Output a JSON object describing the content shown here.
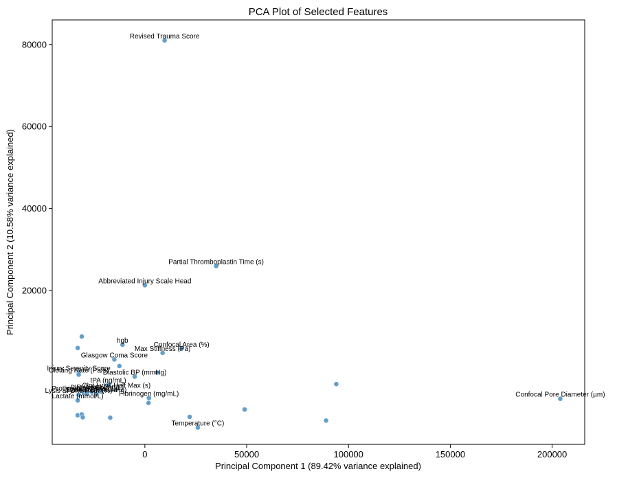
{
  "chart_data": {
    "type": "scatter",
    "title": "PCA Plot of Selected Features",
    "xlabel": "Principal Component 1 (89.42% variance explained)",
    "ylabel": "Principal Component 2 (10.58% variance explained)",
    "xlim": [
      -45500,
      216000
    ],
    "ylim": [
      -17500,
      86000
    ],
    "xticks": [
      0,
      50000,
      100000,
      150000,
      200000
    ],
    "yticks": [
      20000,
      40000,
      60000,
      80000
    ],
    "tick_labels_x": [
      "0",
      "50000",
      "100000",
      "150000",
      "200000"
    ],
    "tick_labels_y": [
      "20000",
      "40000",
      "60000",
      "80000"
    ],
    "points": [
      {
        "x": 9700,
        "y": 81000,
        "label": "Revised Trauma Score"
      },
      {
        "x": 35000,
        "y": 26000,
        "label": "Partial Thromboplastin Time (s)"
      },
      {
        "x": 0,
        "y": 21300,
        "label": "Abbreviated Injury Scale Head"
      },
      {
        "x": -31000,
        "y": 8800,
        "label": ""
      },
      {
        "x": -33000,
        "y": 6000,
        "label": ""
      },
      {
        "x": -11000,
        "y": 6800,
        "label": "hgb"
      },
      {
        "x": 18000,
        "y": 5800,
        "label": "Confocal Area (%)"
      },
      {
        "x": 8700,
        "y": 4800,
        "label": "Max Stiffness (Pa)"
      },
      {
        "x": -15000,
        "y": 3200,
        "label": "Glasgow Coma Score"
      },
      {
        "x": -12500,
        "y": 1600,
        "label": ""
      },
      {
        "x": -32500,
        "y": 0,
        "label": "Injury Severity Score"
      },
      {
        "x": -32500,
        "y": -500,
        "label": "Clotting Rate (Pa/s)"
      },
      {
        "x": 6000,
        "y": 0,
        "label": ""
      },
      {
        "x": -5000,
        "y": -1000,
        "label": "Diastolic BP (mmHg)"
      },
      {
        "x": 94000,
        "y": -2800,
        "label": ""
      },
      {
        "x": -18000,
        "y": -2900,
        "label": "tPA (ng/mL)"
      },
      {
        "x": -14000,
        "y": -4200,
        "label": "Clot Lysis Half Max (s)"
      },
      {
        "x": -22000,
        "y": -4600,
        "label": "D-Dimer (mg/L)"
      },
      {
        "x": -26000,
        "y": -4700,
        "label": "Platelet Count"
      },
      {
        "x": -30000,
        "y": -4900,
        "label": "Prothrombin Time (s)"
      },
      {
        "x": -28500,
        "y": -5200,
        "label": "Base Excess"
      },
      {
        "x": -24000,
        "y": -5300,
        "label": "Systolic BP (mmHg)"
      },
      {
        "x": -32500,
        "y": -5400,
        "label": "Lysis at One Hour (%)"
      },
      {
        "x": -33000,
        "y": -6800,
        "label": "Lactate (mmol/L)"
      },
      {
        "x": 204000,
        "y": -6400,
        "label": "Confocal Pore Diameter (µm)"
      },
      {
        "x": 2000,
        "y": -6200,
        "label": "Fibrinogen (mg/mL)"
      },
      {
        "x": 1800,
        "y": -7400,
        "label": ""
      },
      {
        "x": 49000,
        "y": -9000,
        "label": ""
      },
      {
        "x": -33000,
        "y": -10400,
        "label": ""
      },
      {
        "x": -31000,
        "y": -10200,
        "label": ""
      },
      {
        "x": -30500,
        "y": -10900,
        "label": ""
      },
      {
        "x": -17000,
        "y": -11000,
        "label": ""
      },
      {
        "x": 22000,
        "y": -10800,
        "label": ""
      },
      {
        "x": 89000,
        "y": -11700,
        "label": ""
      },
      {
        "x": 26000,
        "y": -13400,
        "label": "Temperature (°C)"
      }
    ]
  }
}
